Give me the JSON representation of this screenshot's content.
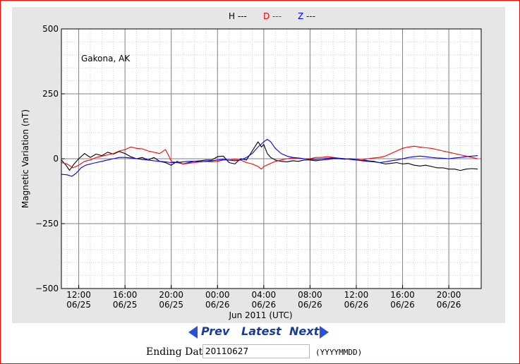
{
  "chart_data": {
    "type": "line",
    "title": "",
    "station": "Gakona, AK",
    "ylabel": "Magnetic Variation (nT)",
    "xlabel": "Jun 2011 (UTC)",
    "ylim": [
      -500,
      500
    ],
    "yticks": [
      500,
      250,
      0,
      -250,
      -500
    ],
    "ytick_labels": [
      "500",
      "250",
      "0",
      "−250",
      "−500"
    ],
    "xlim_hours": [
      10.5,
      46.8
    ],
    "xticks": [
      {
        "hour": 12,
        "time": "12:00",
        "date": "06/25"
      },
      {
        "hour": 16,
        "time": "16:00",
        "date": "06/25"
      },
      {
        "hour": 20,
        "time": "20:00",
        "date": "06/25"
      },
      {
        "hour": 24,
        "time": "00:00",
        "date": "06/26"
      },
      {
        "hour": 28,
        "time": "04:00",
        "date": "06/26"
      },
      {
        "hour": 32,
        "time": "08:00",
        "date": "06/26"
      },
      {
        "hour": 36,
        "time": "12:00",
        "date": "06/26"
      },
      {
        "hour": 40,
        "time": "16:00",
        "date": "06/26"
      },
      {
        "hour": 44,
        "time": "20:00",
        "date": "06/26"
      }
    ],
    "grid": true,
    "legend_position": "top-center",
    "series": [
      {
        "name": "H ---",
        "color": "#000000",
        "points": [
          [
            10.5,
            -5
          ],
          [
            10.9,
            -25
          ],
          [
            11.2,
            -45
          ],
          [
            11.6,
            -20
          ],
          [
            12.0,
            0
          ],
          [
            12.5,
            20
          ],
          [
            13.0,
            5
          ],
          [
            13.5,
            18
          ],
          [
            14.0,
            12
          ],
          [
            14.5,
            25
          ],
          [
            15.0,
            18
          ],
          [
            15.5,
            28
          ],
          [
            16.0,
            20
          ],
          [
            16.5,
            8
          ],
          [
            17.0,
            0
          ],
          [
            17.5,
            5
          ],
          [
            18.0,
            -5
          ],
          [
            18.5,
            5
          ],
          [
            19.0,
            -10
          ],
          [
            19.5,
            -15
          ],
          [
            20.0,
            -25
          ],
          [
            20.5,
            -10
          ],
          [
            21.0,
            -20
          ],
          [
            21.5,
            -15
          ],
          [
            22.0,
            -10
          ],
          [
            22.5,
            -8
          ],
          [
            23.0,
            -5
          ],
          [
            23.5,
            -5
          ],
          [
            24.0,
            8
          ],
          [
            24.5,
            10
          ],
          [
            25.0,
            -15
          ],
          [
            25.5,
            -20
          ],
          [
            26.0,
            0
          ],
          [
            26.5,
            -5
          ],
          [
            27.0,
            30
          ],
          [
            27.5,
            65
          ],
          [
            27.8,
            45
          ],
          [
            28.0,
            55
          ],
          [
            28.3,
            20
          ],
          [
            28.6,
            5
          ],
          [
            29.0,
            -5
          ],
          [
            29.5,
            -10
          ],
          [
            30.0,
            -12
          ],
          [
            30.5,
            -8
          ],
          [
            31.0,
            -10
          ],
          [
            31.5,
            -5
          ],
          [
            32.0,
            -5
          ],
          [
            32.5,
            -8
          ],
          [
            33.0,
            -5
          ],
          [
            33.5,
            -3
          ],
          [
            34.0,
            0
          ],
          [
            34.5,
            0
          ],
          [
            35.0,
            -2
          ],
          [
            35.5,
            0
          ],
          [
            36.0,
            -3
          ],
          [
            36.5,
            -5
          ],
          [
            37.0,
            -8
          ],
          [
            37.5,
            -10
          ],
          [
            38.0,
            -15
          ],
          [
            38.5,
            -20
          ],
          [
            39.0,
            -18
          ],
          [
            39.5,
            -15
          ],
          [
            40.0,
            -20
          ],
          [
            40.5,
            -18
          ],
          [
            41.0,
            -25
          ],
          [
            41.5,
            -28
          ],
          [
            42.0,
            -25
          ],
          [
            42.5,
            -30
          ],
          [
            43.0,
            -35
          ],
          [
            43.5,
            -35
          ],
          [
            44.0,
            -40
          ],
          [
            44.5,
            -40
          ],
          [
            45.0,
            -45
          ],
          [
            45.5,
            -40
          ],
          [
            46.0,
            -38
          ],
          [
            46.5,
            -40
          ]
        ]
      },
      {
        "name": "D ---",
        "color": "#ff0000",
        "points": [
          [
            10.5,
            -15
          ],
          [
            11.0,
            -20
          ],
          [
            11.5,
            -35
          ],
          [
            12.0,
            -25
          ],
          [
            12.5,
            -10
          ],
          [
            13.0,
            -5
          ],
          [
            13.5,
            5
          ],
          [
            14.0,
            10
          ],
          [
            14.5,
            15
          ],
          [
            15.0,
            20
          ],
          [
            15.5,
            30
          ],
          [
            16.0,
            35
          ],
          [
            16.5,
            45
          ],
          [
            17.0,
            40
          ],
          [
            17.5,
            38
          ],
          [
            18.0,
            30
          ],
          [
            18.5,
            25
          ],
          [
            19.0,
            20
          ],
          [
            19.5,
            35
          ],
          [
            19.8,
            10
          ],
          [
            20.0,
            -10
          ],
          [
            20.5,
            -15
          ],
          [
            21.0,
            -20
          ],
          [
            21.5,
            -18
          ],
          [
            22.0,
            -15
          ],
          [
            22.5,
            -12
          ],
          [
            23.0,
            -10
          ],
          [
            23.5,
            -12
          ],
          [
            24.0,
            -10
          ],
          [
            24.5,
            -5
          ],
          [
            25.0,
            -5
          ],
          [
            25.5,
            -3
          ],
          [
            26.0,
            -5
          ],
          [
            26.5,
            -15
          ],
          [
            27.0,
            -20
          ],
          [
            27.5,
            -30
          ],
          [
            27.8,
            -40
          ],
          [
            28.0,
            -30
          ],
          [
            28.5,
            -20
          ],
          [
            29.0,
            -10
          ],
          [
            29.5,
            -5
          ],
          [
            30.0,
            0
          ],
          [
            30.5,
            3
          ],
          [
            31.0,
            2
          ],
          [
            31.5,
            0
          ],
          [
            32.0,
            0
          ],
          [
            32.5,
            5
          ],
          [
            33.0,
            5
          ],
          [
            33.5,
            8
          ],
          [
            34.0,
            5
          ],
          [
            34.5,
            2
          ],
          [
            35.0,
            0
          ],
          [
            35.5,
            -2
          ],
          [
            36.0,
            -3
          ],
          [
            36.5,
            -5
          ],
          [
            37.0,
            0
          ],
          [
            37.5,
            3
          ],
          [
            38.0,
            5
          ],
          [
            38.5,
            10
          ],
          [
            39.0,
            20
          ],
          [
            39.5,
            30
          ],
          [
            40.0,
            40
          ],
          [
            40.5,
            45
          ],
          [
            41.0,
            48
          ],
          [
            41.5,
            45
          ],
          [
            42.0,
            42
          ],
          [
            42.5,
            40
          ],
          [
            43.0,
            35
          ],
          [
            43.5,
            30
          ],
          [
            44.0,
            25
          ],
          [
            44.5,
            20
          ],
          [
            45.0,
            15
          ],
          [
            45.5,
            10
          ],
          [
            46.0,
            5
          ],
          [
            46.5,
            0
          ]
        ]
      },
      {
        "name": "Z ---",
        "color": "#0000ff",
        "points": [
          [
            10.5,
            -60
          ],
          [
            11.0,
            -62
          ],
          [
            11.4,
            -68
          ],
          [
            11.8,
            -55
          ],
          [
            12.2,
            -35
          ],
          [
            12.6,
            -25
          ],
          [
            13.0,
            -20
          ],
          [
            13.5,
            -15
          ],
          [
            14.0,
            -10
          ],
          [
            14.5,
            -5
          ],
          [
            15.0,
            0
          ],
          [
            15.5,
            5
          ],
          [
            16.0,
            5
          ],
          [
            16.5,
            3
          ],
          [
            17.0,
            0
          ],
          [
            17.5,
            -3
          ],
          [
            18.0,
            -5
          ],
          [
            18.5,
            -8
          ],
          [
            19.0,
            -10
          ],
          [
            19.5,
            -12
          ],
          [
            20.0,
            -15
          ],
          [
            20.5,
            -15
          ],
          [
            21.0,
            -12
          ],
          [
            21.5,
            -10
          ],
          [
            22.0,
            -10
          ],
          [
            22.5,
            -12
          ],
          [
            23.0,
            -10
          ],
          [
            23.5,
            -8
          ],
          [
            24.0,
            -5
          ],
          [
            24.5,
            -3
          ],
          [
            25.0,
            -5
          ],
          [
            25.5,
            -8
          ],
          [
            26.0,
            -5
          ],
          [
            26.5,
            5
          ],
          [
            27.0,
            20
          ],
          [
            27.5,
            45
          ],
          [
            28.0,
            65
          ],
          [
            28.3,
            75
          ],
          [
            28.6,
            65
          ],
          [
            29.0,
            40
          ],
          [
            29.5,
            20
          ],
          [
            30.0,
            10
          ],
          [
            30.5,
            5
          ],
          [
            31.0,
            3
          ],
          [
            31.5,
            0
          ],
          [
            32.0,
            -2
          ],
          [
            32.5,
            -3
          ],
          [
            33.0,
            0
          ],
          [
            33.5,
            2
          ],
          [
            34.0,
            3
          ],
          [
            34.5,
            2
          ],
          [
            35.0,
            0
          ],
          [
            35.5,
            -3
          ],
          [
            36.0,
            -5
          ],
          [
            36.5,
            -8
          ],
          [
            37.0,
            -10
          ],
          [
            37.5,
            -12
          ],
          [
            38.0,
            -15
          ],
          [
            38.5,
            -12
          ],
          [
            39.0,
            -8
          ],
          [
            39.5,
            -5
          ],
          [
            40.0,
            0
          ],
          [
            40.5,
            5
          ],
          [
            41.0,
            8
          ],
          [
            41.5,
            10
          ],
          [
            42.0,
            8
          ],
          [
            42.5,
            5
          ],
          [
            43.0,
            3
          ],
          [
            43.5,
            2
          ],
          [
            44.0,
            0
          ],
          [
            44.5,
            3
          ],
          [
            45.0,
            5
          ],
          [
            45.5,
            8
          ],
          [
            46.0,
            10
          ],
          [
            46.5,
            12
          ]
        ]
      }
    ]
  },
  "nav": {
    "prev_label": "Prev",
    "latest_label": "Latest",
    "next_label": "Next"
  },
  "date_form": {
    "label": "Ending Date:",
    "value": "20110627",
    "hint": "(YYYYMMDD)"
  }
}
